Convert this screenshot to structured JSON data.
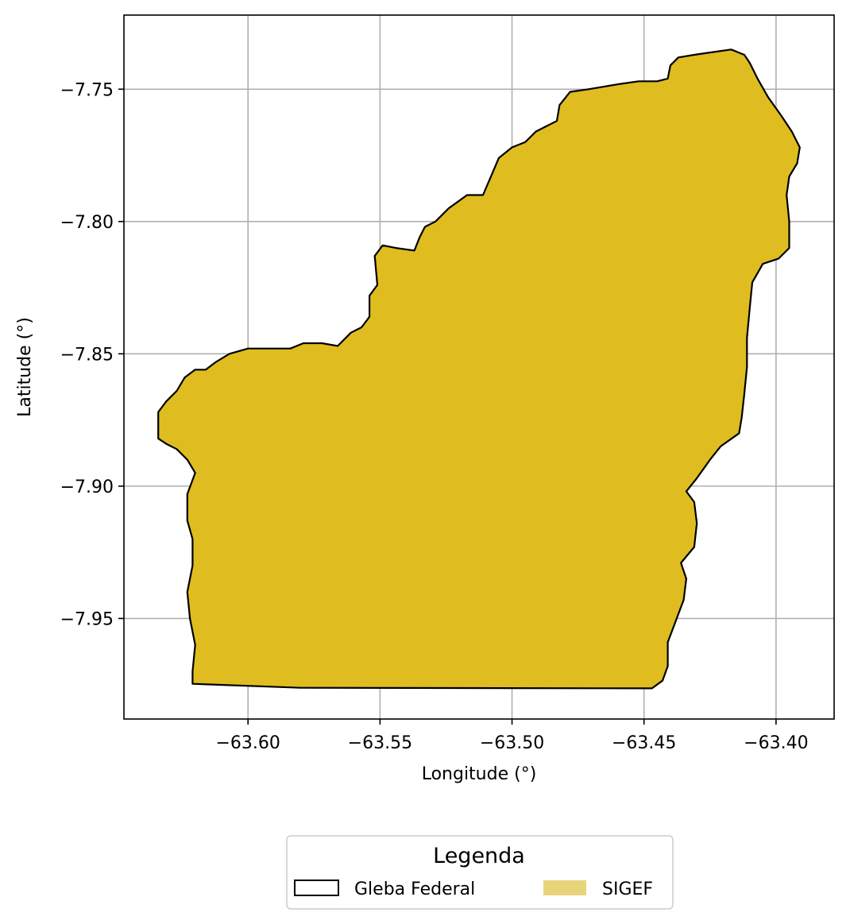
{
  "chart_data": {
    "type": "map",
    "xlabel": "Longitude (°)",
    "ylabel": "Latitude (°)",
    "xlim": [
      -63.647,
      -63.378
    ],
    "ylim": [
      -7.988,
      -7.722
    ],
    "grid": true,
    "x_ticks": [
      -63.6,
      -63.55,
      -63.5,
      -63.45,
      -63.4
    ],
    "x_tick_labels": [
      "−63.60",
      "−63.55",
      "−63.50",
      "−63.45",
      "−63.40"
    ],
    "y_ticks": [
      -7.75,
      -7.8,
      -7.85,
      -7.9,
      -7.95
    ],
    "y_tick_labels": [
      "−7.75",
      "−7.80",
      "−7.85",
      "−7.90",
      "−7.95"
    ],
    "legend": {
      "title": "Legenda",
      "placement": "below",
      "entries": [
        {
          "label": "Gleba Federal",
          "style": "outline",
          "color": "#000000"
        },
        {
          "label": "SIGEF",
          "style": "fill",
          "color": "#e8d47a"
        }
      ]
    },
    "region": {
      "fill": "#dfbd20",
      "edge": "#000000",
      "outline": [
        [
          -63.621,
          -7.9747
        ],
        [
          -63.58,
          -7.9762
        ],
        [
          -63.447,
          -7.9764
        ],
        [
          -63.443,
          -7.9735
        ],
        [
          -63.441,
          -7.968
        ],
        [
          -63.441,
          -7.959
        ],
        [
          -63.438,
          -7.951
        ],
        [
          -63.435,
          -7.943
        ],
        [
          -63.434,
          -7.935
        ],
        [
          -63.436,
          -7.929
        ],
        [
          -63.431,
          -7.923
        ],
        [
          -63.43,
          -7.914
        ],
        [
          -63.431,
          -7.906
        ],
        [
          -63.434,
          -7.902
        ],
        [
          -63.43,
          -7.897
        ],
        [
          -63.425,
          -7.89
        ],
        [
          -63.421,
          -7.885
        ],
        [
          -63.414,
          -7.88
        ],
        [
          -63.413,
          -7.874
        ],
        [
          -63.412,
          -7.865
        ],
        [
          -63.411,
          -7.855
        ],
        [
          -63.411,
          -7.844
        ],
        [
          -63.41,
          -7.833
        ],
        [
          -63.409,
          -7.823
        ],
        [
          -63.405,
          -7.816
        ],
        [
          -63.399,
          -7.814
        ],
        [
          -63.395,
          -7.81
        ],
        [
          -63.395,
          -7.8
        ],
        [
          -63.396,
          -7.79
        ],
        [
          -63.395,
          -7.783
        ],
        [
          -63.392,
          -7.778
        ],
        [
          -63.391,
          -7.772
        ],
        [
          -63.394,
          -7.766
        ],
        [
          -63.398,
          -7.76
        ],
        [
          -63.403,
          -7.753
        ],
        [
          -63.407,
          -7.746
        ],
        [
          -63.41,
          -7.74
        ],
        [
          -63.412,
          -7.737
        ],
        [
          -63.417,
          -7.735
        ],
        [
          -63.424,
          -7.736
        ],
        [
          -63.431,
          -7.737
        ],
        [
          -63.437,
          -7.738
        ],
        [
          -63.44,
          -7.741
        ],
        [
          -63.441,
          -7.746
        ],
        [
          -63.445,
          -7.747
        ],
        [
          -63.452,
          -7.747
        ],
        [
          -63.459,
          -7.748
        ],
        [
          -63.465,
          -7.749
        ],
        [
          -63.471,
          -7.75
        ],
        [
          -63.478,
          -7.751
        ],
        [
          -63.482,
          -7.756
        ],
        [
          -63.483,
          -7.762
        ],
        [
          -63.487,
          -7.764
        ],
        [
          -63.491,
          -7.766
        ],
        [
          -63.495,
          -7.77
        ],
        [
          -63.5,
          -7.772
        ],
        [
          -63.505,
          -7.776
        ],
        [
          -63.508,
          -7.783
        ],
        [
          -63.511,
          -7.79
        ],
        [
          -63.517,
          -7.79
        ],
        [
          -63.524,
          -7.795
        ],
        [
          -63.529,
          -7.8
        ],
        [
          -63.533,
          -7.802
        ],
        [
          -63.535,
          -7.806
        ],
        [
          -63.537,
          -7.811
        ],
        [
          -63.544,
          -7.81
        ],
        [
          -63.549,
          -7.809
        ],
        [
          -63.552,
          -7.813
        ],
        [
          -63.551,
          -7.824
        ],
        [
          -63.554,
          -7.828
        ],
        [
          -63.554,
          -7.836
        ],
        [
          -63.557,
          -7.84
        ],
        [
          -63.561,
          -7.842
        ],
        [
          -63.566,
          -7.847
        ],
        [
          -63.572,
          -7.846
        ],
        [
          -63.579,
          -7.846
        ],
        [
          -63.584,
          -7.848
        ],
        [
          -63.59,
          -7.848
        ],
        [
          -63.6,
          -7.848
        ],
        [
          -63.607,
          -7.85
        ],
        [
          -63.612,
          -7.853
        ],
        [
          -63.616,
          -7.856
        ],
        [
          -63.62,
          -7.856
        ],
        [
          -63.624,
          -7.859
        ],
        [
          -63.627,
          -7.864
        ],
        [
          -63.631,
          -7.868
        ],
        [
          -63.634,
          -7.872
        ],
        [
          -63.634,
          -7.877
        ],
        [
          -63.634,
          -7.882
        ],
        [
          -63.631,
          -7.884
        ],
        [
          -63.627,
          -7.886
        ],
        [
          -63.623,
          -7.89
        ],
        [
          -63.62,
          -7.895
        ],
        [
          -63.623,
          -7.903
        ],
        [
          -63.623,
          -7.913
        ],
        [
          -63.621,
          -7.92
        ],
        [
          -63.621,
          -7.93
        ],
        [
          -63.623,
          -7.94
        ],
        [
          -63.622,
          -7.95
        ],
        [
          -63.62,
          -7.96
        ],
        [
          -63.621,
          -7.97
        ]
      ]
    }
  }
}
